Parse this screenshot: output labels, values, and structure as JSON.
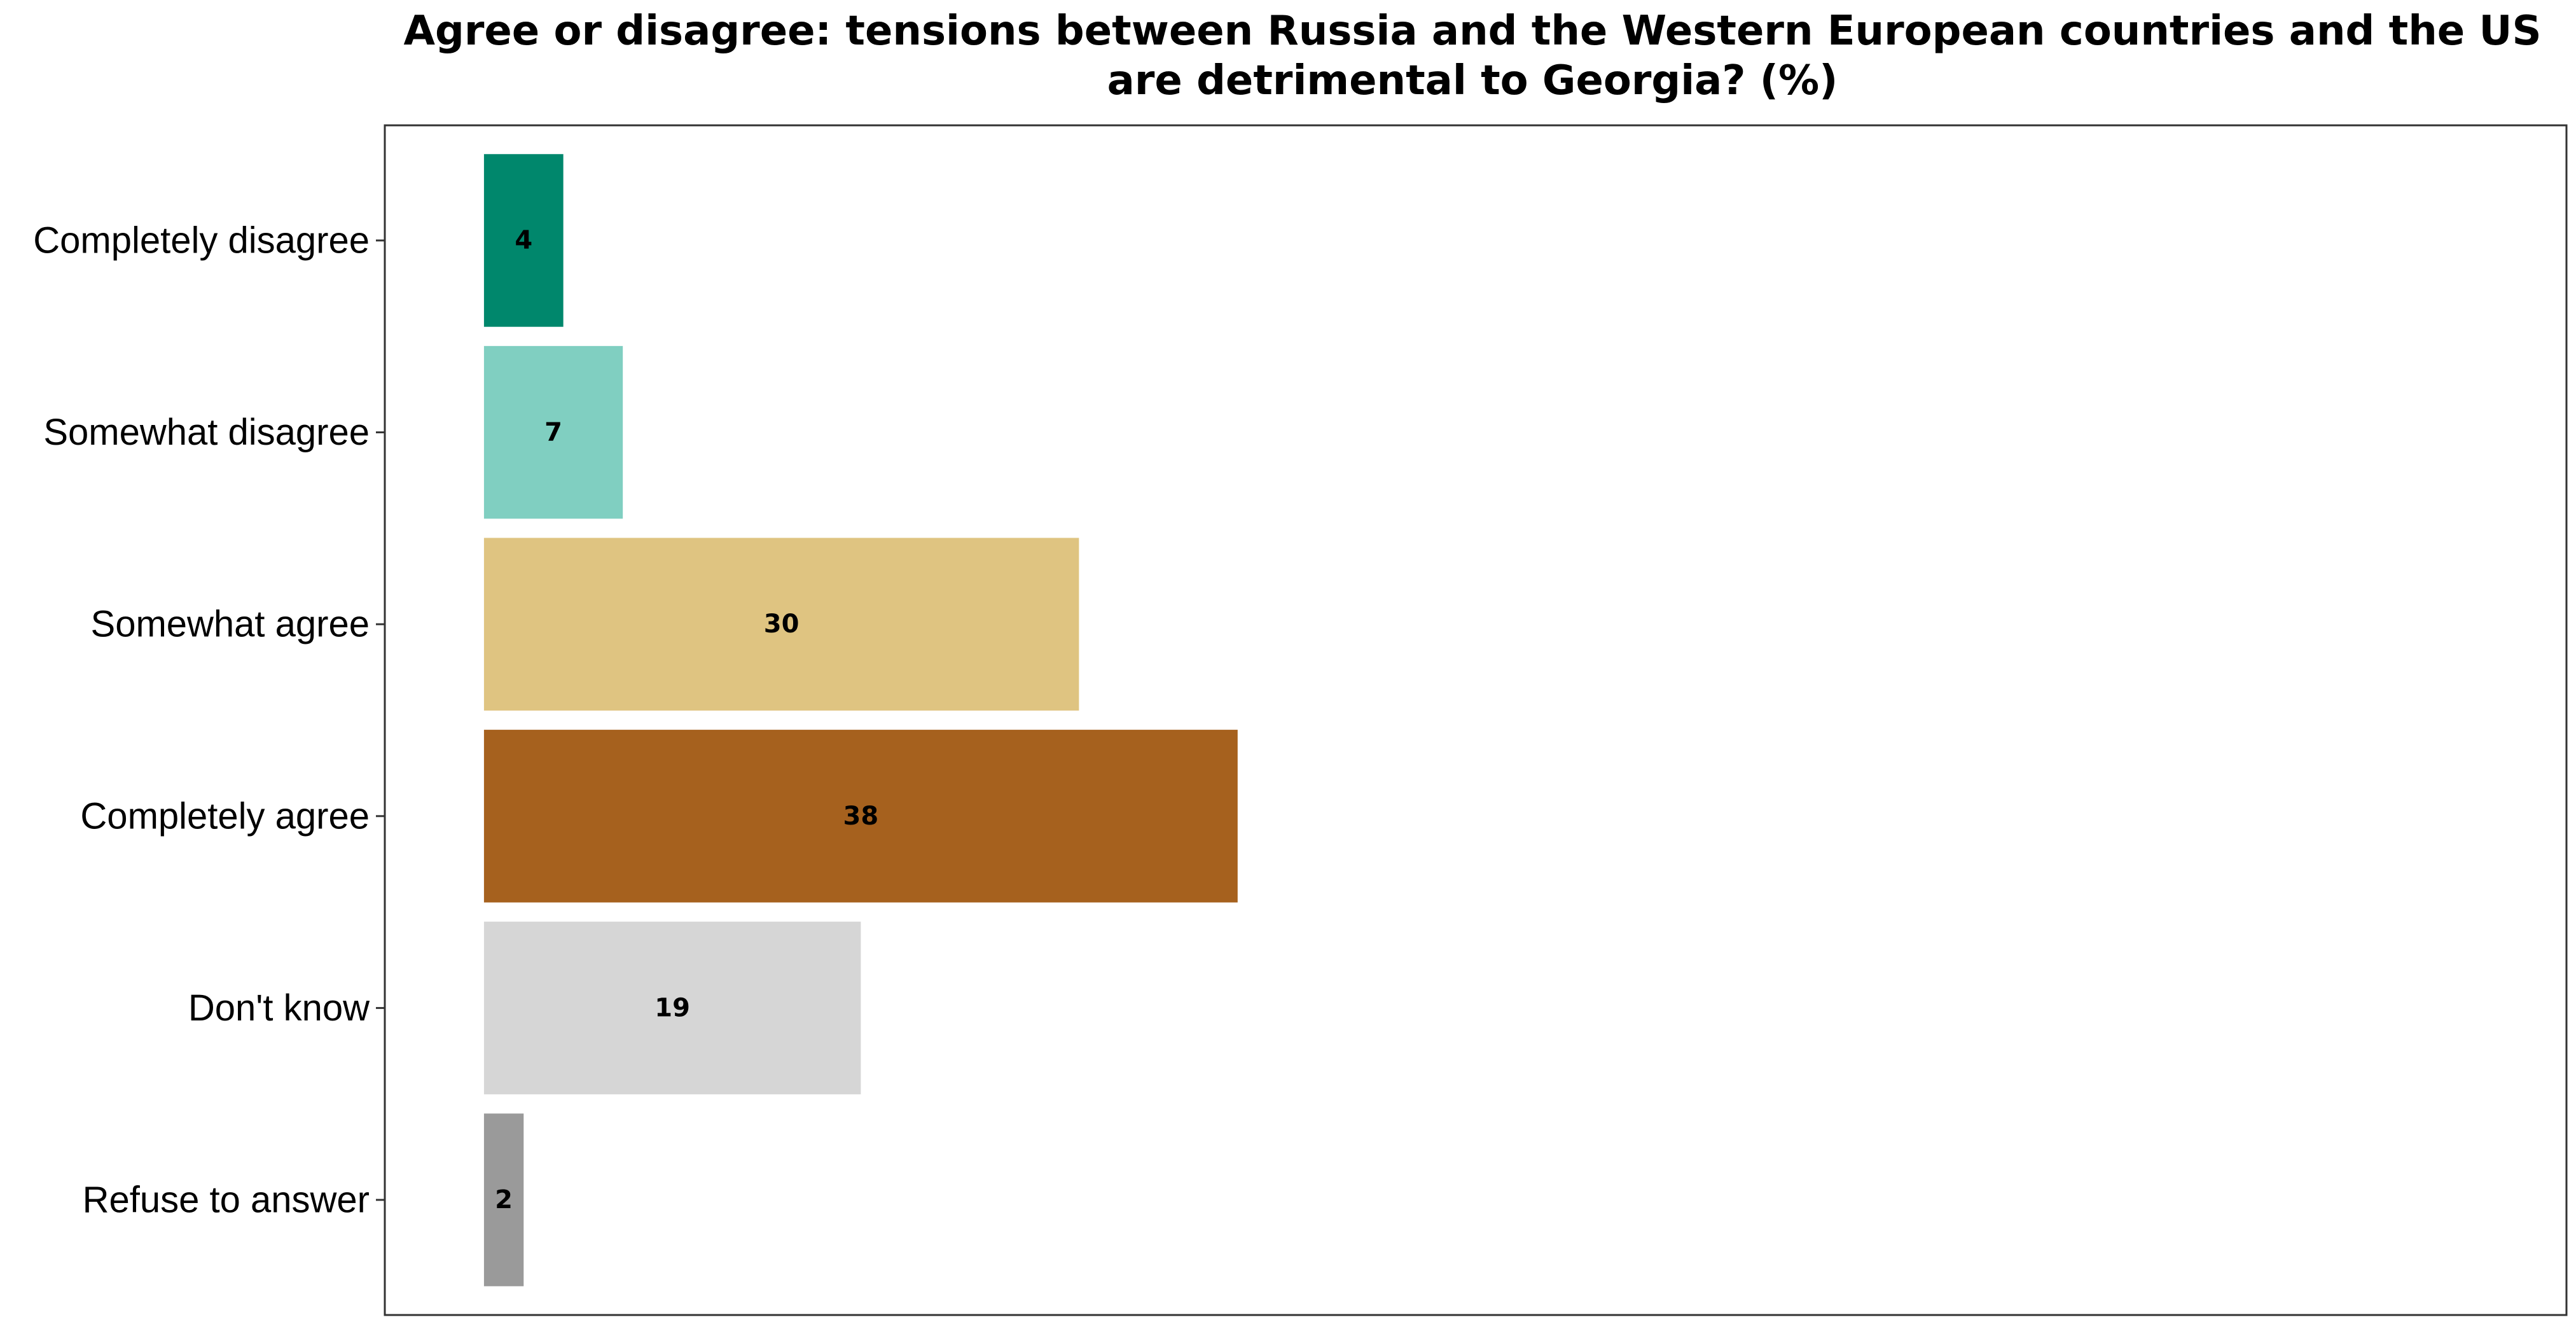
{
  "chart_data": {
    "type": "bar",
    "orientation": "horizontal",
    "title": "Agree or disagree: tensions between Russia and the Western European countries and the US are detrimental to Georgia? (%)",
    "title_lines": [
      "Agree or disagree: tensions between Russia and the Western European countries and the US",
      "are detrimental to Georgia? (%)"
    ],
    "categories": [
      "Completely disagree",
      "Somewhat disagree",
      "Somewhat agree",
      "Completely agree",
      "Don't know",
      "Refuse to answer"
    ],
    "values": [
      4,
      7,
      30,
      38,
      19,
      2
    ],
    "data_labels": [
      "4",
      "7",
      "30",
      "38",
      "19",
      "2"
    ],
    "colors": [
      "#00876c",
      "#80cfc1",
      "#dfc481",
      "#a6611e",
      "#d6d6d6",
      "#9a9a9a"
    ],
    "xlim": [
      -5,
      105
    ],
    "xlabel": "",
    "ylabel": "",
    "grid": false,
    "legend": "none"
  }
}
